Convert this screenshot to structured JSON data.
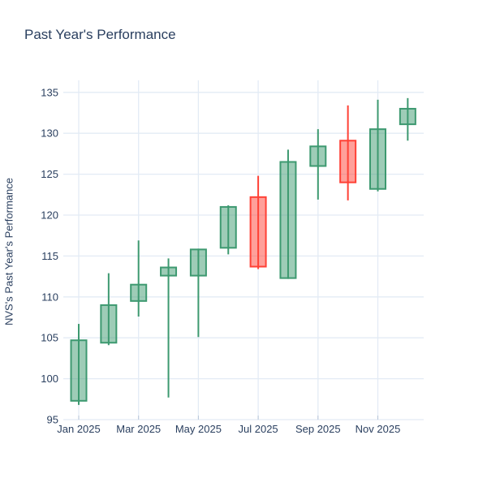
{
  "title": "Past Year's Performance",
  "colors": {
    "increasing_line": "#3D9970",
    "increasing_fill": "rgba(61,153,112,0.5)",
    "decreasing_line": "#FF4136",
    "decreasing_fill": "rgba(255,65,54,0.5)",
    "text": "#2a3f5f",
    "grid": "#e3ebf5",
    "background": "#ffffff"
  },
  "chart_data": {
    "type": "candlestick",
    "title": "Past Year's Performance",
    "xlabel": "",
    "ylabel": "NVS's Past Year's Performance",
    "grid": true,
    "ylim": [
      95,
      136.6
    ],
    "y_ticks": [
      95,
      100,
      105,
      110,
      115,
      120,
      125,
      130,
      135
    ],
    "x_tick_labels": [
      "Jan 2025",
      "Mar 2025",
      "May 2025",
      "Jul 2025",
      "Sep 2025",
      "Nov 2025"
    ],
    "categories": [
      "Jan 2025",
      "Feb 2025",
      "Mar 2025",
      "Apr 2025",
      "May 2025",
      "Jun 2025",
      "Jul 2025",
      "Aug 2025",
      "Sep 2025",
      "Oct 2025",
      "Nov 2025",
      "Dec 2025"
    ],
    "ohlc": [
      {
        "month": "Jan 2025",
        "open": 97.3,
        "high": 106.7,
        "low": 96.8,
        "close": 104.7
      },
      {
        "month": "Feb 2025",
        "open": 104.4,
        "high": 112.9,
        "low": 104.1,
        "close": 109.0
      },
      {
        "month": "Mar 2025",
        "open": 109.5,
        "high": 116.9,
        "low": 107.6,
        "close": 111.5
      },
      {
        "month": "Apr 2025",
        "open": 112.6,
        "high": 114.7,
        "low": 97.7,
        "close": 113.6
      },
      {
        "month": "May 2025",
        "open": 112.6,
        "high": 115.9,
        "low": 105.1,
        "close": 115.8
      },
      {
        "month": "Jun 2025",
        "open": 116.0,
        "high": 121.2,
        "low": 115.2,
        "close": 121.0
      },
      {
        "month": "Jul 2025",
        "open": 122.2,
        "high": 124.8,
        "low": 113.4,
        "close": 113.7
      },
      {
        "month": "Aug 2025",
        "open": 112.3,
        "high": 128.0,
        "low": 112.2,
        "close": 126.5
      },
      {
        "month": "Sep 2025",
        "open": 126.0,
        "high": 130.5,
        "low": 121.9,
        "close": 128.4
      },
      {
        "month": "Oct 2025",
        "open": 129.1,
        "high": 133.4,
        "low": 121.8,
        "close": 124.0
      },
      {
        "month": "Nov 2025",
        "open": 123.2,
        "high": 134.1,
        "low": 122.9,
        "close": 130.5
      },
      {
        "month": "Dec 2025",
        "open": 131.1,
        "high": 134.3,
        "low": 129.1,
        "close": 133.0
      }
    ]
  }
}
